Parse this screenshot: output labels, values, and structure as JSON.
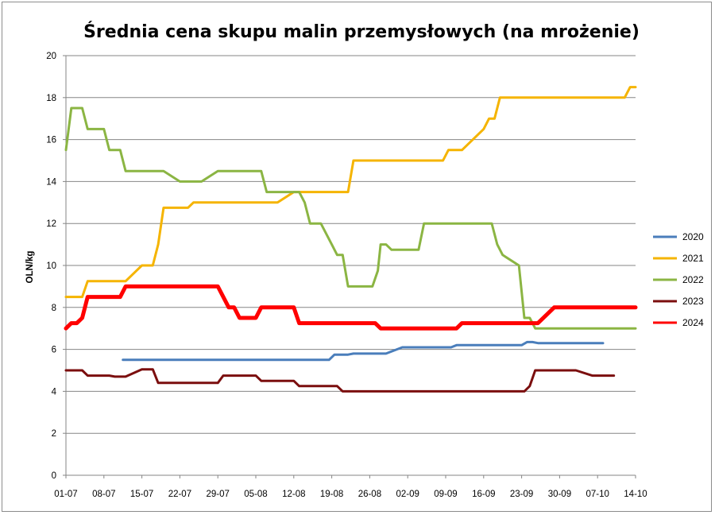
{
  "chart_data": {
    "type": "line",
    "title": "Średnia cena skupu malin przemysłowych (na mrożenie)",
    "xlabel": "",
    "ylabel": "OLN/kg",
    "ylim": [
      0,
      20
    ],
    "yticks": [
      0,
      2,
      4,
      6,
      8,
      10,
      12,
      14,
      16,
      18,
      20
    ],
    "x_tick_labels": [
      "01-07",
      "08-07",
      "15-07",
      "22-07",
      "29-07",
      "05-08",
      "12-08",
      "19-08",
      "26-08",
      "02-09",
      "09-09",
      "16-09",
      "23-09",
      "30-09",
      "07-10",
      "14-10"
    ],
    "x_range_days": [
      0,
      105
    ],
    "grid": "horizontal",
    "legend_position": "right",
    "series": [
      {
        "name": "2020",
        "color": "#4a7ebb",
        "line_width": 3,
        "points": [
          [
            10.5,
            5.5
          ],
          [
            48.5,
            5.5
          ],
          [
            49.5,
            5.75
          ],
          [
            52,
            5.75
          ],
          [
            53,
            5.8
          ],
          [
            59,
            5.8
          ],
          [
            62,
            6.1
          ],
          [
            71,
            6.1
          ],
          [
            72,
            6.2
          ],
          [
            84,
            6.2
          ],
          [
            85,
            6.35
          ],
          [
            86,
            6.35
          ],
          [
            87,
            6.3
          ],
          [
            99,
            6.3
          ]
        ]
      },
      {
        "name": "2021",
        "color": "#f5b400",
        "line_width": 3,
        "points": [
          [
            0,
            8.5
          ],
          [
            3,
            8.5
          ],
          [
            4,
            9.25
          ],
          [
            11,
            9.25
          ],
          [
            13,
            9.75
          ],
          [
            14,
            10
          ],
          [
            16,
            10
          ],
          [
            17,
            11
          ],
          [
            18,
            12.75
          ],
          [
            22.5,
            12.75
          ],
          [
            23.5,
            13
          ],
          [
            39,
            13
          ],
          [
            42,
            13.5
          ],
          [
            52,
            13.5
          ],
          [
            53,
            15
          ],
          [
            69.5,
            15
          ],
          [
            70.5,
            15.5
          ],
          [
            73,
            15.5
          ],
          [
            77,
            16.5
          ],
          [
            78,
            17
          ],
          [
            79,
            17
          ],
          [
            80,
            18
          ],
          [
            103,
            18
          ],
          [
            104,
            18.5
          ],
          [
            105,
            18.5
          ]
        ]
      },
      {
        "name": "2022",
        "color": "#8bb543",
        "line_width": 3,
        "points": [
          [
            0,
            15.5
          ],
          [
            1,
            17.5
          ],
          [
            3,
            17.5
          ],
          [
            4,
            16.5
          ],
          [
            7,
            16.5
          ],
          [
            8,
            15.5
          ],
          [
            10,
            15.5
          ],
          [
            11,
            14.5
          ],
          [
            18,
            14.5
          ],
          [
            21,
            14
          ],
          [
            25,
            14
          ],
          [
            28,
            14.5
          ],
          [
            36,
            14.5
          ],
          [
            37,
            13.5
          ],
          [
            42,
            13.5
          ],
          [
            43,
            13.5
          ],
          [
            44,
            13
          ],
          [
            45,
            12
          ],
          [
            47,
            12
          ],
          [
            49,
            11
          ],
          [
            50,
            10.5
          ],
          [
            51,
            10.5
          ],
          [
            52,
            9
          ],
          [
            56.5,
            9
          ],
          [
            57.5,
            9.75
          ],
          [
            58,
            11
          ],
          [
            59,
            11
          ],
          [
            60,
            10.75
          ],
          [
            65,
            10.75
          ],
          [
            66,
            12
          ],
          [
            78.5,
            12
          ],
          [
            79.5,
            11
          ],
          [
            80.5,
            10.5
          ],
          [
            83.5,
            10
          ],
          [
            84.5,
            7.5
          ],
          [
            85.5,
            7.5
          ],
          [
            86.5,
            7
          ],
          [
            105,
            7
          ]
        ]
      },
      {
        "name": "2023",
        "color": "#7b0e0e",
        "line_width": 3,
        "points": [
          [
            0,
            5
          ],
          [
            3,
            5
          ],
          [
            4,
            4.75
          ],
          [
            8,
            4.75
          ],
          [
            9,
            4.7
          ],
          [
            11,
            4.7
          ],
          [
            14,
            5.05
          ],
          [
            16,
            5.05
          ],
          [
            17,
            4.4
          ],
          [
            28,
            4.4
          ],
          [
            29,
            4.75
          ],
          [
            35,
            4.75
          ],
          [
            36,
            4.5
          ],
          [
            42,
            4.5
          ],
          [
            43,
            4.25
          ],
          [
            50,
            4.25
          ],
          [
            51,
            4
          ],
          [
            84.5,
            4
          ],
          [
            85.5,
            4.25
          ],
          [
            86.5,
            5
          ],
          [
            94,
            5
          ],
          [
            97,
            4.75
          ],
          [
            101,
            4.75
          ]
        ]
      },
      {
        "name": "2024",
        "color": "#ff0000",
        "line_width": 5,
        "points": [
          [
            0,
            7
          ],
          [
            1,
            7.25
          ],
          [
            2,
            7.25
          ],
          [
            3,
            7.5
          ],
          [
            4,
            8.5
          ],
          [
            10,
            8.5
          ],
          [
            11,
            9
          ],
          [
            28,
            9
          ],
          [
            30,
            8
          ],
          [
            31,
            8
          ],
          [
            32,
            7.5
          ],
          [
            35,
            7.5
          ],
          [
            36,
            8
          ],
          [
            42,
            8
          ],
          [
            43,
            7.25
          ],
          [
            57,
            7.25
          ],
          [
            58,
            7
          ],
          [
            72,
            7
          ],
          [
            73,
            7.25
          ],
          [
            87,
            7.25
          ],
          [
            90,
            8
          ],
          [
            105,
            8
          ]
        ]
      }
    ]
  }
}
